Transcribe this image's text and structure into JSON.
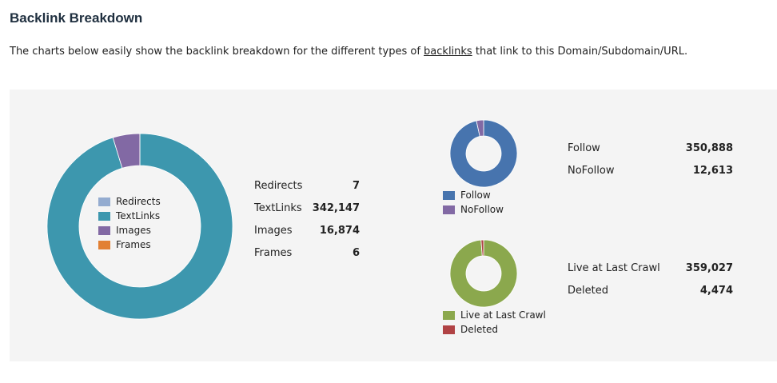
{
  "header": {
    "title": "Backlink Breakdown",
    "intro_before": "The charts below easily show the backlink breakdown for the different types of ",
    "intro_link": "backlinks",
    "intro_after": " that link to this Domain/Subdomain/URL."
  },
  "chart_data": [
    {
      "type": "pie",
      "donut": true,
      "legend_position": "inside",
      "categories": [
        "Redirects",
        "TextLinks",
        "Images",
        "Frames"
      ],
      "values": [
        7,
        342147,
        16874,
        6
      ],
      "labels": [
        "7",
        "342,147",
        "16,874",
        "6"
      ],
      "colors": [
        "#94acd0",
        "#3d97ae",
        "#8269a4",
        "#e28033"
      ]
    },
    {
      "type": "pie",
      "donut": true,
      "legend_position": "bottom",
      "categories": [
        "Follow",
        "NoFollow"
      ],
      "values": [
        350888,
        12613
      ],
      "labels": [
        "350,888",
        "12,613"
      ],
      "colors": [
        "#4774ae",
        "#8269a4"
      ]
    },
    {
      "type": "pie",
      "donut": true,
      "legend_position": "bottom",
      "categories": [
        "Live at Last Crawl",
        "Deleted"
      ],
      "values": [
        359027,
        4474
      ],
      "labels": [
        "359,027",
        "4,474"
      ],
      "colors": [
        "#8ba84d",
        "#b04244"
      ]
    }
  ]
}
